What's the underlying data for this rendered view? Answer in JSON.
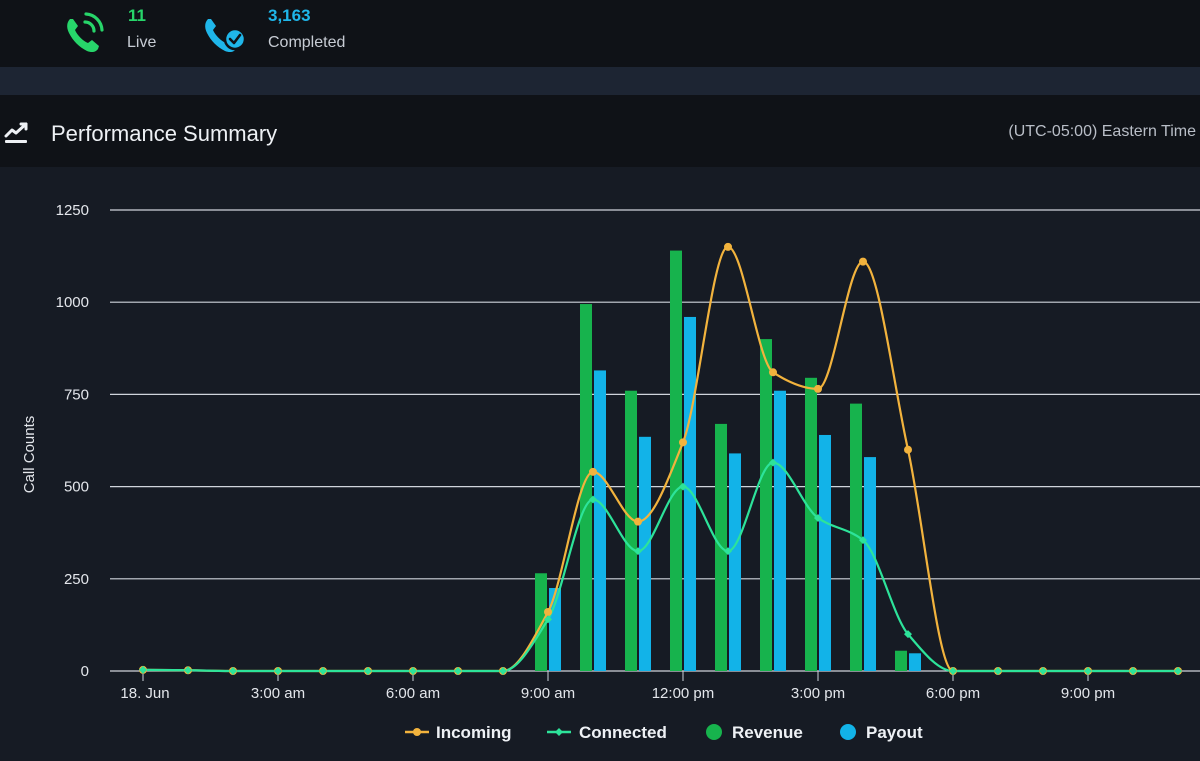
{
  "stats": {
    "live": {
      "value": "11",
      "label": "Live",
      "color": "#27d56a",
      "icon": "phone-ringing-icon"
    },
    "completed": {
      "value": "3,163",
      "label": "Completed",
      "color": "#1fb6ea",
      "icon": "phone-check-icon"
    }
  },
  "panel": {
    "title": "Performance Summary",
    "icon": "trend-chart-icon",
    "timezone": "(UTC-05:00) Eastern Time"
  },
  "chart_data": {
    "type": "bar",
    "title": "",
    "ylabel": "Call Counts",
    "xlabel": "",
    "ylim": [
      0,
      1250
    ],
    "yticks": [
      0,
      250,
      500,
      750,
      1000,
      1250
    ],
    "grid": true,
    "legend_position": "bottom",
    "x_hours": [
      0,
      1,
      2,
      3,
      4,
      5,
      6,
      7,
      8,
      9,
      10,
      11,
      12,
      13,
      14,
      15,
      16,
      17,
      18,
      19,
      20,
      21,
      22,
      23
    ],
    "x_tick_labels": [
      {
        "hour": 0,
        "label": "18. Jun"
      },
      {
        "hour": 3,
        "label": "3:00 am"
      },
      {
        "hour": 6,
        "label": "6:00 am"
      },
      {
        "hour": 9,
        "label": "9:00 am"
      },
      {
        "hour": 12,
        "label": "12:00 pm"
      },
      {
        "hour": 15,
        "label": "3:00 pm"
      },
      {
        "hour": 18,
        "label": "6:00 pm"
      },
      {
        "hour": 21,
        "label": "9:00 pm"
      }
    ],
    "series": [
      {
        "name": "Incoming",
        "kind": "line",
        "color": "#f2b33d",
        "values": [
          3,
          2,
          0,
          0,
          0,
          0,
          0,
          0,
          0,
          160,
          540,
          405,
          620,
          1150,
          810,
          765,
          1110,
          600,
          0,
          0,
          0,
          0,
          0,
          0
        ]
      },
      {
        "name": "Connected",
        "kind": "line",
        "color": "#2de39a",
        "values": [
          3,
          2,
          0,
          0,
          0,
          0,
          0,
          0,
          0,
          140,
          465,
          325,
          500,
          325,
          565,
          415,
          355,
          100,
          0,
          0,
          0,
          0,
          0,
          0
        ]
      },
      {
        "name": "Revenue",
        "kind": "bar",
        "color": "#17b34d",
        "values": [
          0,
          0,
          0,
          0,
          0,
          0,
          0,
          0,
          0,
          265,
          995,
          760,
          1140,
          670,
          900,
          795,
          725,
          55,
          0,
          0,
          0,
          0,
          0,
          0
        ]
      },
      {
        "name": "Payout",
        "kind": "bar",
        "color": "#12b3e8",
        "values": [
          0,
          0,
          0,
          0,
          0,
          0,
          0,
          0,
          0,
          225,
          815,
          635,
          960,
          590,
          760,
          640,
          580,
          48,
          0,
          0,
          0,
          0,
          0,
          0
        ]
      }
    ]
  }
}
